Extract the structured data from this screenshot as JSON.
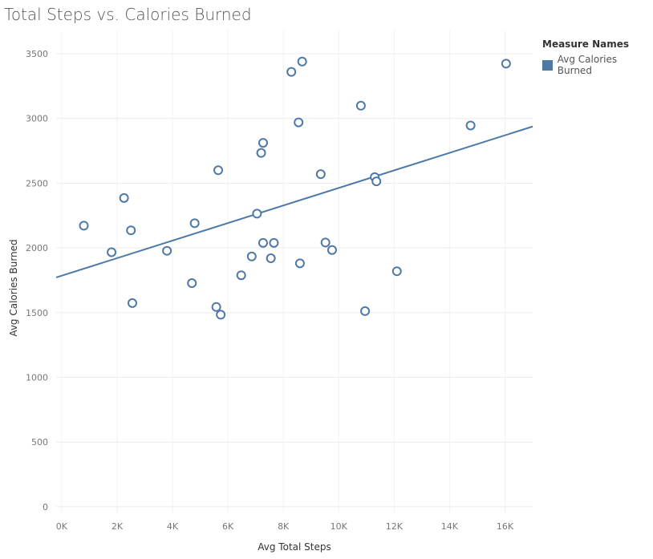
{
  "chart_data": {
    "type": "scatter",
    "title": "Total Steps vs. Calories Burned",
    "xlabel": "Avg Total Steps",
    "ylabel": "Avg Calories Burned",
    "xlim": [
      -200,
      17000
    ],
    "ylim": [
      -50,
      3680
    ],
    "x_ticks": [
      0,
      2000,
      4000,
      6000,
      8000,
      10000,
      12000,
      14000,
      16000
    ],
    "x_tick_labels": [
      "0K",
      "2K",
      "4K",
      "6K",
      "8K",
      "10K",
      "12K",
      "14K",
      "16K"
    ],
    "y_ticks": [
      0,
      500,
      1000,
      1500,
      2000,
      2500,
      3000,
      3500
    ],
    "y_tick_labels": [
      "0",
      "500",
      "1000",
      "1500",
      "2000",
      "2500",
      "3000",
      "3500"
    ],
    "grid": true,
    "legend": {
      "title": "Measure Names",
      "placement": "top-right",
      "entries": [
        {
          "name": "Avg Calories Burned",
          "color": "#4e79a7"
        }
      ]
    },
    "series": [
      {
        "name": "Avg Calories Burned",
        "color": "#4e79a7",
        "points": [
          {
            "x": 800,
            "y": 2172
          },
          {
            "x": 1800,
            "y": 1967
          },
          {
            "x": 2250,
            "y": 2386
          },
          {
            "x": 2500,
            "y": 2136
          },
          {
            "x": 2550,
            "y": 1574
          },
          {
            "x": 3800,
            "y": 1978
          },
          {
            "x": 4700,
            "y": 1728
          },
          {
            "x": 4800,
            "y": 2191
          },
          {
            "x": 5580,
            "y": 1544
          },
          {
            "x": 5650,
            "y": 2600
          },
          {
            "x": 5740,
            "y": 1484
          },
          {
            "x": 6480,
            "y": 1789
          },
          {
            "x": 6860,
            "y": 1934
          },
          {
            "x": 7050,
            "y": 2265
          },
          {
            "x": 7200,
            "y": 2734
          },
          {
            "x": 7270,
            "y": 2812
          },
          {
            "x": 7270,
            "y": 2039
          },
          {
            "x": 7550,
            "y": 1920
          },
          {
            "x": 7660,
            "y": 2039
          },
          {
            "x": 8290,
            "y": 3360
          },
          {
            "x": 8550,
            "y": 2970
          },
          {
            "x": 8600,
            "y": 1881
          },
          {
            "x": 8680,
            "y": 3440
          },
          {
            "x": 9350,
            "y": 2570
          },
          {
            "x": 9520,
            "y": 2042
          },
          {
            "x": 9760,
            "y": 1984
          },
          {
            "x": 10800,
            "y": 3099
          },
          {
            "x": 10950,
            "y": 1512
          },
          {
            "x": 11300,
            "y": 2547
          },
          {
            "x": 11360,
            "y": 2514
          },
          {
            "x": 12100,
            "y": 1820
          },
          {
            "x": 14760,
            "y": 2946
          },
          {
            "x": 16040,
            "y": 3424
          }
        ]
      }
    ],
    "trend_line": {
      "x": [
        -200,
        17000
      ],
      "y": [
        1772,
        2938
      ],
      "color": "#4e79a7"
    }
  }
}
